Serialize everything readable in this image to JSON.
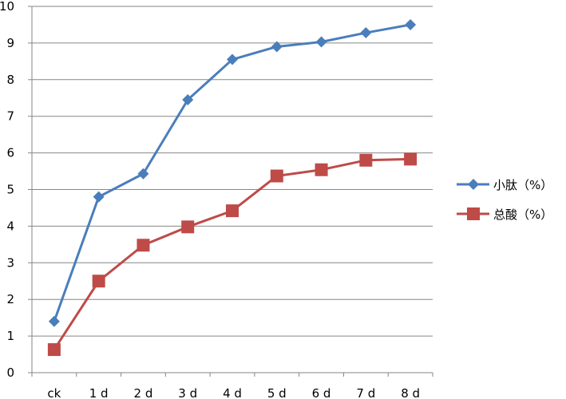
{
  "chart_data": {
    "type": "line",
    "categories": [
      "ck",
      "1 d",
      "2 d",
      "3 d",
      "4 d",
      "5 d",
      "6 d",
      "7 d",
      "8 d"
    ],
    "ylim": [
      0,
      10
    ],
    "yticks": [
      0,
      1,
      2,
      3,
      4,
      5,
      6,
      7,
      8,
      9,
      10
    ],
    "grid": true,
    "legend_position": "right",
    "series": [
      {
        "name": "小肽（%）",
        "color": "#4a7ebb",
        "marker": "diamond",
        "values": [
          1.4,
          4.8,
          5.43,
          7.45,
          8.55,
          8.9,
          9.03,
          9.28,
          9.5
        ]
      },
      {
        "name": "总酸（%）",
        "color": "#be4b48",
        "marker": "square",
        "values": [
          0.63,
          2.5,
          3.48,
          3.98,
          4.42,
          5.37,
          5.54,
          5.8,
          5.83
        ]
      }
    ]
  }
}
